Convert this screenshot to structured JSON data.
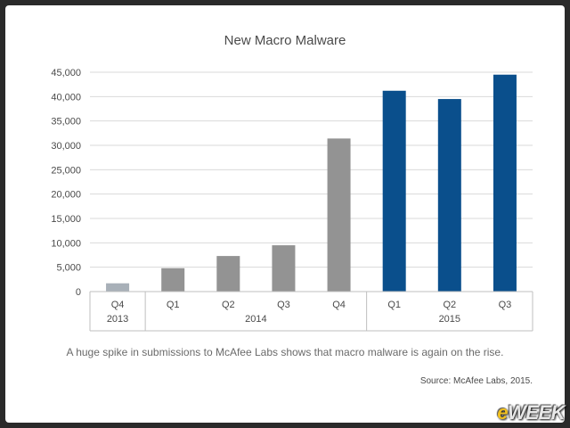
{
  "chart_data": {
    "type": "bar",
    "title": "New Macro Malware",
    "categories": [
      "Q4",
      "Q1",
      "Q2",
      "Q3",
      "Q4",
      "Q1",
      "Q2",
      "Q3"
    ],
    "groups": [
      {
        "label": "2013",
        "span": [
          0,
          0
        ]
      },
      {
        "label": "2014",
        "span": [
          1,
          4
        ]
      },
      {
        "label": "2015",
        "span": [
          5,
          7
        ]
      }
    ],
    "values": [
      1700,
      4800,
      7300,
      9500,
      31400,
      41200,
      39500,
      44500
    ],
    "bar_colors": [
      "#a8b0b8",
      "#939393",
      "#939393",
      "#939393",
      "#939393",
      "#0a4f8c",
      "#0a4f8c",
      "#0a4f8c"
    ],
    "ylim": [
      0,
      45000
    ],
    "yticks": [
      "0",
      "5,000",
      "10,000",
      "15,000",
      "20,000",
      "25,000",
      "30,000",
      "35,000",
      "40,000",
      "45,000"
    ],
    "ytick_values": [
      0,
      5000,
      10000,
      15000,
      20000,
      25000,
      30000,
      35000,
      40000,
      45000
    ],
    "grid": true,
    "xlabel": "",
    "ylabel": ""
  },
  "caption": "A huge spike in submissions to McAfee Labs shows that macro malware is again on the rise.",
  "source": "Source: McAfee Labs, 2015.",
  "logo": {
    "e": "e",
    "rest": "WEEK"
  }
}
